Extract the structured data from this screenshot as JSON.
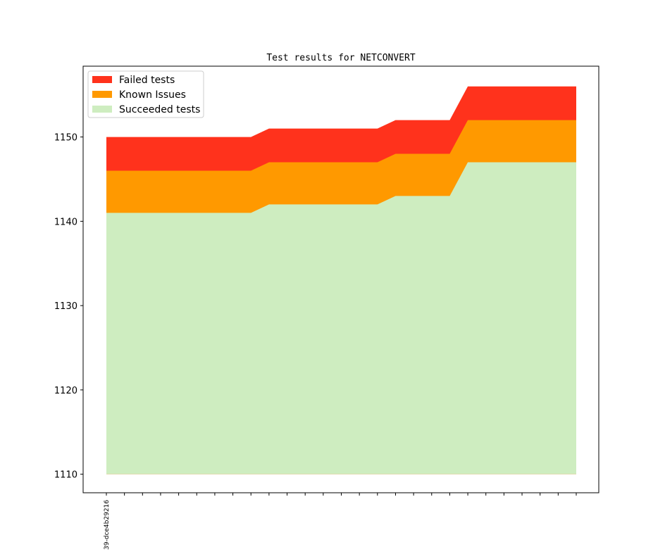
{
  "chart_data": {
    "type": "area",
    "title": "Test results for NETCONVERT",
    "xlabel": "",
    "ylabel": "",
    "stacked": true,
    "ylim": [
      1107.8,
      1158.4
    ],
    "yticks": [
      1110,
      1120,
      1130,
      1140,
      1150
    ],
    "y_baseline": 1110,
    "x_count": 27,
    "x_tick_labels": [
      "39-dce4b29216"
    ],
    "grid": false,
    "legend": {
      "placement": "top-left",
      "entries": [
        "Failed tests",
        "Known Issues",
        "Succeeded tests"
      ]
    },
    "colors": {
      "Failed tests": "#ff321c",
      "Known Issues": "#ff9900",
      "Succeeded tests": "#ceedc0"
    },
    "series": [
      {
        "name": "Succeeded tests",
        "values": [
          1141,
          1141,
          1141,
          1141,
          1141,
          1141,
          1141,
          1141,
          1141,
          1142,
          1142,
          1142,
          1142,
          1142,
          1142,
          1142,
          1143,
          1143,
          1143,
          1143,
          1147,
          1147,
          1147,
          1147,
          1147,
          1147,
          1147
        ]
      },
      {
        "name": "Known Issues",
        "values": [
          1146,
          1146,
          1146,
          1146,
          1146,
          1146,
          1146,
          1146,
          1146,
          1147,
          1147,
          1147,
          1147,
          1147,
          1147,
          1147,
          1148,
          1148,
          1148,
          1148,
          1152,
          1152,
          1152,
          1152,
          1152,
          1152,
          1152
        ]
      },
      {
        "name": "Failed tests",
        "values": [
          1150,
          1150,
          1150,
          1150,
          1150,
          1150,
          1150,
          1150,
          1150,
          1151,
          1151,
          1151,
          1151,
          1151,
          1151,
          1151,
          1152,
          1152,
          1152,
          1152,
          1156,
          1156,
          1156,
          1156,
          1156,
          1156,
          1156
        ]
      }
    ]
  }
}
